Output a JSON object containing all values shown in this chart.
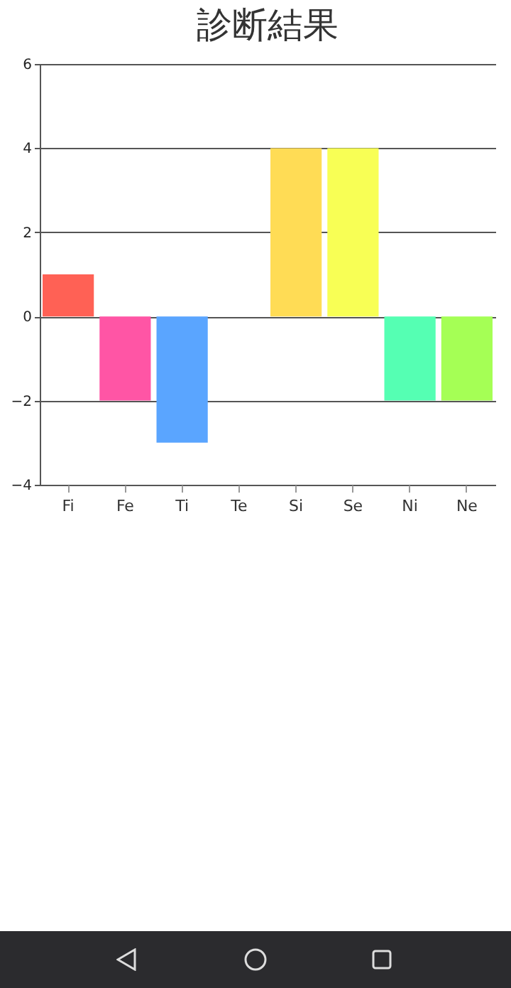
{
  "chart_data": {
    "type": "bar",
    "title": "診断結果",
    "categories": [
      "Fi",
      "Fe",
      "Ti",
      "Te",
      "Si",
      "Se",
      "Ni",
      "Ne"
    ],
    "values": [
      1,
      -2,
      -3,
      0,
      4,
      4,
      -2,
      -2
    ],
    "colors": [
      "#ff6155",
      "#ff55a5",
      "#5aa5ff",
      "#a55aff",
      "#ffdc55",
      "#f8ff55",
      "#55ffb3",
      "#a5ff55"
    ],
    "ylim": [
      -4,
      6
    ],
    "yticks": [
      -4,
      -2,
      0,
      2,
      4,
      6
    ],
    "grid": "y"
  }
}
